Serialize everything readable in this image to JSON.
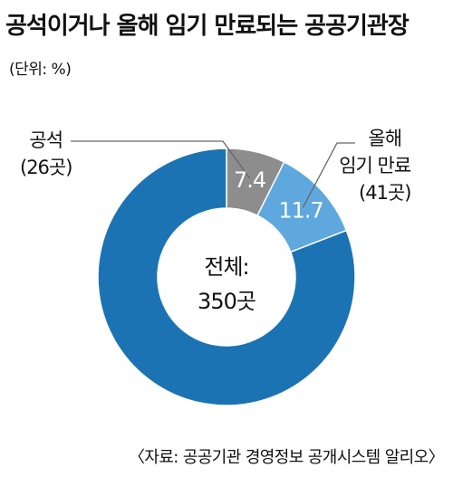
{
  "title": "공석이거나 올해 임기 만료되는 공공기관장",
  "unit": "(단위: %)",
  "center_label": {
    "line1": "전체:",
    "line2": "350곳"
  },
  "source": "〈자료: 공공기관 경영정보 공개시스템 알리오〉",
  "chart_data": {
    "type": "pie",
    "donut": true,
    "categories": [
      "공석",
      "올해 임기 만료",
      ""
    ],
    "values": [
      7.4,
      11.7,
      80.9
    ],
    "value_labels": [
      "7.4",
      "11.7",
      ""
    ],
    "callouts": [
      {
        "line1": "공석",
        "line2": "(26곳)"
      },
      {
        "line1": "올해",
        "line2": "임기 만료",
        "line3": "(41곳)"
      }
    ],
    "colors": [
      "#8d8d8d",
      "#5ea8de",
      "#1b73b3"
    ],
    "value_label_color": "#ffffff"
  }
}
